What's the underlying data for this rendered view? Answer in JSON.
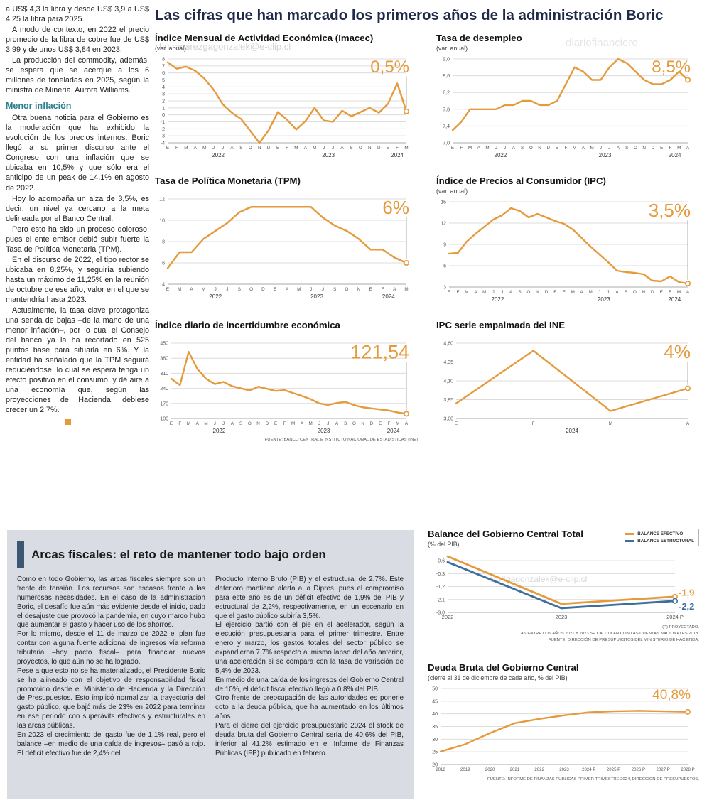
{
  "page": {
    "main_title": "Las cifras que han marcado los primeros años de la administración Boric",
    "watermarks": {
      "wm1": "hmramirezgagonzalek@e-clip.cl",
      "wm2": "diariofinanciero",
      "wm3": "ero#gagonzalek@e-clip.cl"
    }
  },
  "left_article": {
    "paragraphs_top": [
      "a US$ 4,3 la libra y desde US$ 3,9 a US$ 4,25 la libra para 2025.",
      "A modo de contexto, en 2022 el precio promedio de la libra de cobre fue de US$ 3,99 y de unos US$ 3,84 en 2023.",
      "La producción del commodity, además, se espera que se acerque a los 6 millones de toneladas en 2025, según la ministra de Minería, Aurora Williams."
    ],
    "heading": "Menor inflación",
    "paragraphs_bottom": [
      "Otra buena noticia para el Gobierno es la moderación que ha exhibido la evolución de los precios internos. Boric llegó a su primer discurso ante el Congreso con una inflación que se ubicaba en 10,5% y que sólo era el anticipo de un peak de 14,1% en agosto de 2022.",
      "Hoy lo acompaña un alza de 3,5%, es decir, un nivel ya cercano a la meta delineada por el Banco Central.",
      "Pero esto ha sido un proceso doloroso, pues el ente emisor debió subir fuerte la Tasa de Política Monetaria (TPM).",
      "En el discurso de 2022, el tipo rector se ubicaba en 8,25%, y seguiría subiendo hasta un máximo de 11,25% en la reunión de octubre de ese año, valor en el que se mantendría hasta 2023.",
      "Actualmente, la tasa clave protagoniza una senda de bajas –de la mano de una menor inflación–, por lo cual el Consejo del banco ya la ha recortado en 525 puntos base para situarla en 6%. Y la entidad ha señalado que la TPM seguirá reduciéndose, lo cual se espera tenga un efecto positivo en el consumo, y dé aire a una economía que, según las proyecciones de Hacienda, debiese crecer un 2,7%."
    ]
  },
  "fiscal_article": {
    "title": "Arcas fiscales: el reto de mantener todo bajo orden",
    "col1": [
      "Como en todo Gobierno, las arcas fiscales siempre son un frente de tensión. Los recursos son escasos frente a las numerosas necesidades. En el caso de la administración Boric, el desafío fue aún más evidente desde el inicio, dado el desajuste que provocó la pandemia, en cuyo marco hubo que aumentar el gasto y hacer uso de los ahorros.",
      "Por lo mismo, desde el 11 de marzo de 2022 el plan fue contar con alguna fuente adicional de ingresos vía reforma tributaria –hoy pacto fiscal– para financiar nuevos proyectos, lo que aún no se ha logrado.",
      "Pese a que esto no se ha materializado, el Presidente Boric se ha alineado con el objetivo de responsabilidad fiscal promovido desde el Ministerio de Hacienda y la Dirección de Presupuestos. Esto implicó normalizar la trayectoria del gasto público, que bajó más de 23% en 2022 para terminar en ese período con superávits efectivos y estructurales en las arcas públicas.",
      "En 2023 el crecimiento del gasto fue de 1,1% real, pero el balance –en medio de una caída de ingresos– pasó a rojo. El déficit efectivo fue de 2,4% del"
    ],
    "col2": [
      "Producto Interno Bruto (PIB) y el estructural de 2,7%. Este deterioro mantiene alerta a la Dipres, pues el compromiso para este año es de un déficit efectivo de 1,9% del PIB y estructural de 2,2%, respectivamente, en un escenario en que el gasto público subiría 3,5%.",
      "El ejercicio partió con el pie en el acelerador, según la ejecución presupuestaria para el primer trimestre. Entre enero y marzo, los gastos totales del sector público se expandieron 7,7% respecto al mismo lapso del año anterior, una aceleración si se compara con la tasa de variación de 5,4% de 2023.",
      "En medio de una caída de los ingresos del Gobierno Central de 10%, el déficit fiscal efectivo llegó a 0,8% del PIB.",
      "Otro frente de preocupación de las autoridades es ponerle coto a la deuda pública, que ha aumentado en los últimos años.",
      "Para el cierre del ejercicio presupuestario 2024 el stock de deuda bruta del Gobierno Central sería de 40,6% del PIB, inferior al 41,2% estimado en el Informe de Finanzas Públicas (IFP) publicado en febrero."
    ]
  },
  "chart_data": [
    {
      "type": "line",
      "title": "Índice Mensual de Actividad Económica (Imacec)",
      "subtitle": "(var. anual)",
      "y_min": -4,
      "y_max": 8,
      "y_ticks": [
        [
          "8",
          8
        ],
        [
          "7",
          7
        ],
        [
          "6",
          6
        ],
        [
          "5",
          5
        ],
        [
          "4",
          4
        ],
        [
          "3",
          3
        ],
        [
          "2",
          2
        ],
        [
          "1",
          1
        ],
        [
          "0",
          0
        ],
        [
          "-1",
          -1
        ],
        [
          "-2",
          -2
        ],
        [
          "-3",
          -3
        ],
        [
          "-4",
          -4
        ]
      ],
      "x_labels": [
        "E",
        "F",
        "M",
        "A",
        "M",
        "J",
        "J",
        "A",
        "S",
        "O",
        "N",
        "D",
        "E",
        "F",
        "M",
        "A",
        "M",
        "J",
        "J",
        "A",
        "S",
        "O",
        "N",
        "D",
        "E",
        "F",
        "M"
      ],
      "year_ticks": [
        {
          "label": "2022",
          "index": 5.5
        },
        {
          "label": "2023",
          "index": 17.5
        },
        {
          "label": "2024",
          "index": 25
        }
      ],
      "series": [
        {
          "name": "Imacec var. anual %",
          "color": "#E59A3C",
          "values": [
            7.5,
            6.6,
            6.9,
            6.3,
            5.2,
            3.6,
            1.5,
            0.3,
            -0.6,
            -2.3,
            -4.0,
            -2.2,
            0.4,
            -0.7,
            -2.1,
            -0.9,
            1.0,
            -0.8,
            -1.0,
            0.6,
            -0.2,
            0.4,
            1.0,
            0.3,
            1.6,
            4.5,
            0.5
          ]
        }
      ],
      "callouts": [
        {
          "text": "0,5%",
          "color": "#E59A3C",
          "size": 24,
          "pos": "top",
          "line": true
        }
      ]
    },
    {
      "type": "line",
      "title": "Tasa de desempleo",
      "subtitle": "(var. anual)",
      "y_min": 7.0,
      "y_max": 9.0,
      "y_ticks": [
        [
          "9,0",
          9.0
        ],
        [
          "8,6",
          8.6
        ],
        [
          "8,2",
          8.2
        ],
        [
          "7,8",
          7.8
        ],
        [
          "7,4",
          7.4
        ],
        [
          "7,0",
          7.0
        ]
      ],
      "x_labels": [
        "E",
        "F",
        "M",
        "A",
        "M",
        "J",
        "J",
        "A",
        "S",
        "O",
        "N",
        "D",
        "E",
        "F",
        "M",
        "A",
        "M",
        "J",
        "J",
        "A",
        "S",
        "O",
        "N",
        "D",
        "E",
        "F",
        "M",
        "A"
      ],
      "year_ticks": [
        {
          "label": "2022",
          "index": 5.5
        },
        {
          "label": "2023",
          "index": 17.5
        },
        {
          "label": "2024",
          "index": 25.5
        }
      ],
      "series": [
        {
          "name": "Tasa de desempleo %",
          "color": "#E59A3C",
          "values": [
            7.3,
            7.5,
            7.8,
            7.8,
            7.8,
            7.8,
            7.9,
            7.9,
            8.0,
            8.0,
            7.9,
            7.9,
            8.0,
            8.4,
            8.8,
            8.7,
            8.5,
            8.5,
            8.8,
            9.0,
            8.9,
            8.7,
            8.5,
            8.4,
            8.4,
            8.5,
            8.7,
            8.5
          ]
        }
      ],
      "callouts": [
        {
          "text": "8,5%",
          "color": "#E59A3C",
          "size": 24,
          "pos": "top",
          "line": true
        }
      ]
    },
    {
      "type": "line",
      "title": "Tasa de Política Monetaria (TPM)",
      "subtitle": "",
      "y_min": 4,
      "y_max": 12,
      "y_ticks": [
        [
          "12",
          12
        ],
        [
          "10",
          10
        ],
        [
          "8",
          8
        ],
        [
          "6",
          6
        ],
        [
          "4",
          4
        ]
      ],
      "x_labels": [
        "E",
        "M",
        "A",
        "M",
        "J",
        "J",
        "S",
        "O",
        "D",
        "E",
        "A",
        "M",
        "J",
        "J",
        "S",
        "O",
        "N",
        "E",
        "F",
        "A",
        "M"
      ],
      "year_ticks": [
        {
          "label": "2022",
          "index": 4
        },
        {
          "label": "2023",
          "index": 12.5
        },
        {
          "label": "2024",
          "index": 18.5
        }
      ],
      "series": [
        {
          "name": "TPM %",
          "color": "#E59A3C",
          "values": [
            5.5,
            7.0,
            7.0,
            8.25,
            9.0,
            9.75,
            10.75,
            11.25,
            11.25,
            11.25,
            11.25,
            11.25,
            11.25,
            10.25,
            9.5,
            9.0,
            8.25,
            7.25,
            7.25,
            6.5,
            6.0
          ]
        }
      ],
      "callouts": [
        {
          "text": "6%",
          "color": "#E59A3C",
          "size": 26,
          "pos": "top",
          "line": true
        }
      ]
    },
    {
      "type": "line",
      "title": "Índice de Precios al Consumidor (IPC)",
      "subtitle": "(var. anual)",
      "y_min": 3,
      "y_max": 15,
      "y_ticks": [
        [
          "15",
          15
        ],
        [
          "12",
          12
        ],
        [
          "9",
          9
        ],
        [
          "6",
          6
        ],
        [
          "3",
          3
        ]
      ],
      "x_labels": [
        "E",
        "F",
        "M",
        "A",
        "M",
        "J",
        "J",
        "A",
        "S",
        "O",
        "N",
        "D",
        "E",
        "F",
        "M",
        "A",
        "M",
        "J",
        "J",
        "A",
        "S",
        "O",
        "N",
        "D",
        "E",
        "F",
        "M",
        "A"
      ],
      "year_ticks": [
        {
          "label": "2022",
          "index": 5.5
        },
        {
          "label": "2023",
          "index": 17.5
        },
        {
          "label": "2024",
          "index": 25.5
        }
      ],
      "series": [
        {
          "name": "IPC var. anual %",
          "color": "#E59A3C",
          "values": [
            7.7,
            7.8,
            9.4,
            10.5,
            11.5,
            12.5,
            13.1,
            14.1,
            13.7,
            12.8,
            13.3,
            12.8,
            12.3,
            11.9,
            11.1,
            9.9,
            8.7,
            7.6,
            6.5,
            5.3,
            5.1,
            5.0,
            4.8,
            3.9,
            3.8,
            4.5,
            3.7,
            3.5
          ]
        }
      ],
      "callouts": [
        {
          "text": "3,5%",
          "color": "#E59A3C",
          "size": 26,
          "pos": "top",
          "line": true
        }
      ]
    },
    {
      "type": "line",
      "title": "Índice diario de incertidumbre económica",
      "subtitle": "",
      "y_min": 100,
      "y_max": 450,
      "y_ticks": [
        [
          "450",
          450
        ],
        [
          "380",
          380
        ],
        [
          "310",
          310
        ],
        [
          "240",
          240
        ],
        [
          "170",
          170
        ],
        [
          "100",
          100
        ]
      ],
      "x_labels": [
        "E",
        "F",
        "M",
        "A",
        "M",
        "J",
        "J",
        "A",
        "S",
        "O",
        "N",
        "D",
        "E",
        "F",
        "M",
        "A",
        "M",
        "J",
        "J",
        "A",
        "S",
        "O",
        "N",
        "D",
        "E",
        "F",
        "M",
        "A"
      ],
      "year_ticks": [
        {
          "label": "2022",
          "index": 5.5
        },
        {
          "label": "2023",
          "index": 17.5
        },
        {
          "label": "2024",
          "index": 25.5
        }
      ],
      "series": [
        {
          "name": "Índice de incertidumbre",
          "color": "#E59A3C",
          "values": [
            285,
            255,
            410,
            330,
            285,
            260,
            270,
            250,
            240,
            230,
            248,
            238,
            228,
            232,
            218,
            205,
            190,
            170,
            163,
            172,
            177,
            162,
            152,
            147,
            142,
            137,
            128,
            121.54
          ]
        }
      ],
      "callouts": [
        {
          "text": "121,54",
          "color": "#E59A3C",
          "size": 27,
          "pos": "top",
          "line": true
        }
      ],
      "notes": [
        "FUENTE: BANCO CENTRAL E INSTITUTO NACIONAL DE ESTADÍSTICAS (INE)"
      ]
    },
    {
      "type": "line",
      "title": "IPC serie empalmada del INE",
      "subtitle": "",
      "y_min": 3.6,
      "y_max": 4.6,
      "y_ticks": [
        [
          "4,60",
          4.6
        ],
        [
          "4,35",
          4.35
        ],
        [
          "4,10",
          4.1
        ],
        [
          "3,85",
          3.85
        ],
        [
          "3,60",
          3.6
        ]
      ],
      "x_labels": [
        "E",
        "F",
        "M",
        "A"
      ],
      "year_ticks": [
        {
          "label": "2024",
          "index": 1.5
        }
      ],
      "series": [
        {
          "name": "IPC serie empalmada %",
          "color": "#E59A3C",
          "values": [
            3.8,
            4.5,
            3.7,
            4.0
          ]
        }
      ],
      "callouts": [
        {
          "text": "4%",
          "color": "#E59A3C",
          "size": 26,
          "pos": "top",
          "line": true
        }
      ]
    },
    {
      "type": "line",
      "title": "Balance del Gobierno Central Total",
      "subtitle": "(% del PIB)",
      "y_min": -3.0,
      "y_max": 1.0,
      "mr": 34,
      "lw": 2.8,
      "xfs": 7.5,
      "y_ticks": [
        [
          "0,6",
          0.6
        ],
        [
          "-0,3",
          -0.3
        ],
        [
          "-1,2",
          -1.2
        ],
        [
          "-2,1",
          -2.1
        ],
        [
          "-3,0",
          -3.0
        ]
      ],
      "x_labels": [
        "2022",
        "2023",
        "2024 P"
      ],
      "legend": [
        {
          "label": "BALANCE EFECTIVO",
          "color": "#E59A3C"
        },
        {
          "label": "BALANCE ESTRUCTURAL",
          "color": "#3C6E9E"
        }
      ],
      "series": [
        {
          "name": "Balance efectivo",
          "color": "#E59A3C",
          "values": [
            0.9,
            -2.4,
            -1.9
          ]
        },
        {
          "name": "Balance estructural",
          "color": "#3C6E9E",
          "values": [
            0.5,
            -2.7,
            -2.2
          ]
        }
      ],
      "callouts": [
        {
          "text": "-1,9",
          "color": "#E59A3C",
          "size": 13,
          "pos": "end",
          "series": 0,
          "dy": -1
        },
        {
          "text": "-2,2",
          "color": "#3C6E9E",
          "size": 13,
          "pos": "end",
          "series": 1,
          "dy": 12
        }
      ],
      "notes": [
        "(P) PROYECTADO.",
        "LAS ENTRE LOS AÑOS 2021 Y 2023 SE CALCULAN CON LAS CUENTAS NACIONALES 2018.",
        "FUENTE: DIRECCIÓN DE PRESUPUESTOS DEL MINISTERIO DE HACIENDA."
      ]
    },
    {
      "type": "line",
      "title": "Deuda Bruta del Gobierno Central",
      "subtitle": "(cierre al 31 de diciembre de cada año, % del PIB)",
      "y_min": 20,
      "y_max": 50,
      "xfs": 6.1,
      "y_ticks": [
        [
          "50",
          50
        ],
        [
          "45",
          45
        ],
        [
          "40",
          40
        ],
        [
          "35",
          35
        ],
        [
          "30",
          30
        ],
        [
          "25",
          25
        ],
        [
          "20",
          20
        ]
      ],
      "x_labels": [
        "2018",
        "2019",
        "2020",
        "2021",
        "2022",
        "2023",
        "2024 P",
        "2025 P",
        "2026 P",
        "2027 P",
        "2028 P"
      ],
      "series": [
        {
          "name": "Deuda bruta % del PIB",
          "color": "#E59A3C",
          "values": [
            25.1,
            28.0,
            32.4,
            36.3,
            38.0,
            39.4,
            40.6,
            41.0,
            41.2,
            41.0,
            40.8
          ]
        }
      ],
      "callouts": [
        {
          "text": "40,8%",
          "color": "#E59A3C",
          "size": 19,
          "pos": "top",
          "line": false
        }
      ],
      "notes": [
        "FUENTE: INFORME DE FINANZAS PÚBLICAS PRIMER TRIMESTRE 2024, DIRECCIÓN DE PRESUPUESTOS."
      ]
    }
  ]
}
